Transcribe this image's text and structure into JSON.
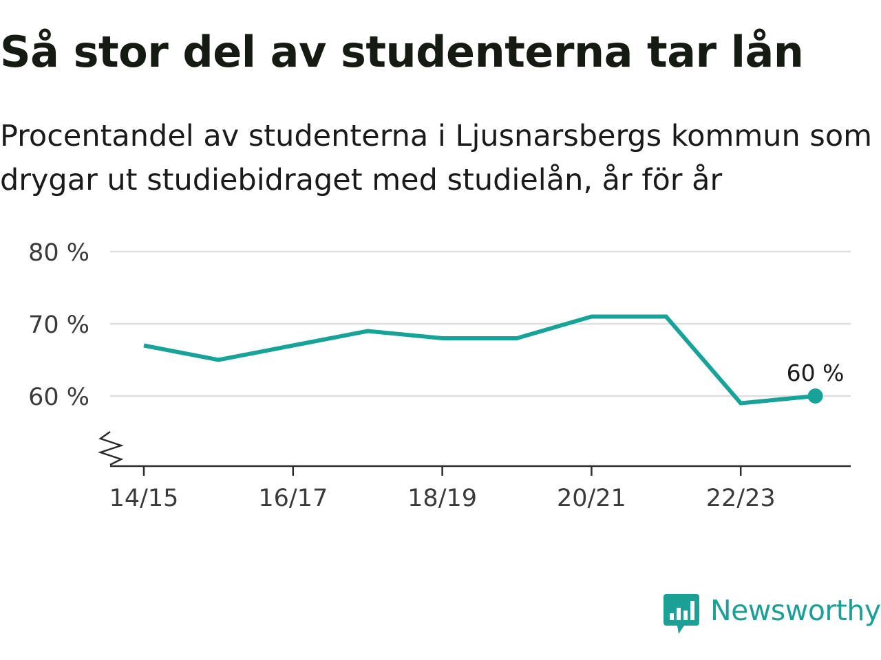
{
  "header": {
    "title": "Så stor del av studenterna tar lån",
    "subtitle": "Procentandel av studenterna i Ljusnarsbergs kommun som drygar ut studiebidraget med studielån, år för år"
  },
  "brand": {
    "name": "Newsworthy",
    "icon": "newsworthy-logo-icon"
  },
  "colors": {
    "line": "#17a398",
    "grid": "#dedede",
    "axis": "#2b2b2b",
    "brand": "#1aa095"
  },
  "chart_data": {
    "type": "line",
    "title": "Så stor del av studenterna tar lån",
    "subtitle": "Procentandel av studenterna i Ljusnarsbergs kommun som drygar ut studiebidraget med studielån, år för år",
    "xlabel": "",
    "ylabel": "",
    "x": [
      "14/15",
      "15/16",
      "16/17",
      "17/18",
      "18/19",
      "19/20",
      "20/21",
      "21/22",
      "22/23",
      "23/24"
    ],
    "x_tick_labels": [
      "14/15",
      "16/17",
      "18/19",
      "20/21",
      "22/23"
    ],
    "y_ticks": [
      60,
      70,
      80
    ],
    "y_tick_labels": [
      "60 %",
      "70 %",
      "80 %"
    ],
    "ylim": [
      50,
      80
    ],
    "axis_break": true,
    "grid": true,
    "series": [
      {
        "values": [
          67,
          65,
          67,
          69,
          68,
          68,
          71,
          71,
          59,
          60
        ]
      }
    ],
    "annotations": [
      {
        "x": "23/24",
        "text": "60 %"
      }
    ]
  }
}
